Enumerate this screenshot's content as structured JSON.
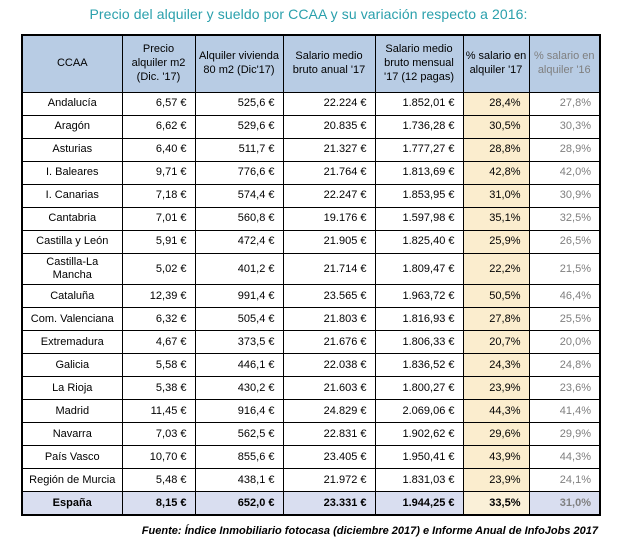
{
  "page": {
    "title": "Precio del alquiler y sueldo por CCAA y su variación respecto a 2016:",
    "source_note": "Fuente: Índice Inmobiliario fotocasa (diciembre 2017) e Informe Anual de InfoJobs 2017"
  },
  "colors": {
    "title_teal": "#2aa0ac",
    "header_bg": "#b8cce4",
    "highlight_column_bg": "#fbedce",
    "total_row_bg": "#d9def0",
    "secondary_text_gray": "#7f7f7f",
    "border": "#000000"
  },
  "chart_data": {
    "type": "table",
    "title": "Precio del alquiler y sueldo por CCAA y su variación respecto a 2016:",
    "columns": [
      "CCAA",
      "Precio alquiler m2 (Dic. '17)",
      "Alquiler vivienda 80 m2 (Dic'17)",
      "Salario medio bruto anual '17",
      "Salario medio bruto mensual '17 (12 pagas)",
      "% salario en alquiler '17",
      "% salario en alquiler '16"
    ],
    "rows": [
      [
        "Andalucía",
        "6,57 €",
        "525,6 €",
        "22.224 €",
        "1.852,01 €",
        "28,4%",
        "27,8%"
      ],
      [
        "Aragón",
        "6,62 €",
        "529,6 €",
        "20.835 €",
        "1.736,28 €",
        "30,5%",
        "30,3%"
      ],
      [
        "Asturias",
        "6,40 €",
        "511,7 €",
        "21.327 €",
        "1.777,27 €",
        "28,8%",
        "28,9%"
      ],
      [
        "I. Baleares",
        "9,71 €",
        "776,6 €",
        "21.764 €",
        "1.813,69 €",
        "42,8%",
        "42,0%"
      ],
      [
        "I. Canarias",
        "7,18 €",
        "574,4 €",
        "22.247 €",
        "1.853,95 €",
        "31,0%",
        "30,9%"
      ],
      [
        "Cantabria",
        "7,01 €",
        "560,8 €",
        "19.176 €",
        "1.597,98 €",
        "35,1%",
        "32,5%"
      ],
      [
        "Castilla y León",
        "5,91 €",
        "472,4 €",
        "21.905 €",
        "1.825,40 €",
        "25,9%",
        "26,5%"
      ],
      [
        "Castilla-La Mancha",
        "5,02 €",
        "401,2 €",
        "21.714 €",
        "1.809,47 €",
        "22,2%",
        "21,5%"
      ],
      [
        "Cataluña",
        "12,39 €",
        "991,4 €",
        "23.565 €",
        "1.963,72 €",
        "50,5%",
        "46,4%"
      ],
      [
        "Com. Valenciana",
        "6,32 €",
        "505,4 €",
        "21.803 €",
        "1.816,93 €",
        "27,8%",
        "25,5%"
      ],
      [
        "Extremadura",
        "4,67 €",
        "373,5 €",
        "21.676 €",
        "1.806,33 €",
        "20,7%",
        "20,0%"
      ],
      [
        "Galicia",
        "5,58 €",
        "446,1 €",
        "22.038 €",
        "1.836,52 €",
        "24,3%",
        "24,8%"
      ],
      [
        "La Rioja",
        "5,38 €",
        "430,2 €",
        "21.603 €",
        "1.800,27 €",
        "23,9%",
        "23,6%"
      ],
      [
        "Madrid",
        "11,45 €",
        "916,4 €",
        "24.829 €",
        "2.069,06 €",
        "44,3%",
        "41,4%"
      ],
      [
        "Navarra",
        "7,03 €",
        "562,5 €",
        "22.831 €",
        "1.902,62 €",
        "29,6%",
        "29,9%"
      ],
      [
        "País Vasco",
        "10,70 €",
        "855,6 €",
        "23.405 €",
        "1.950,41 €",
        "43,9%",
        "44,3%"
      ],
      [
        "Región de Murcia",
        "5,48 €",
        "438,1 €",
        "21.972 €",
        "1.831,03 €",
        "23,9%",
        "24,1%"
      ]
    ],
    "total_row": [
      "España",
      "8,15 €",
      "652,0 €",
      "23.331 €",
      "1.944,25 €",
      "33,5%",
      "31,0%"
    ],
    "source": "Fuente: Índice Inmobiliario fotocasa (diciembre 2017) e Informe Anual de InfoJobs 2017",
    "layout_hints": {
      "highlighted_column": "% salario en alquiler '17",
      "gray_column": "% salario en alquiler '16",
      "total_row_style": "bold on light blue-lavender background",
      "grid": "black borders, light blue header row"
    }
  }
}
